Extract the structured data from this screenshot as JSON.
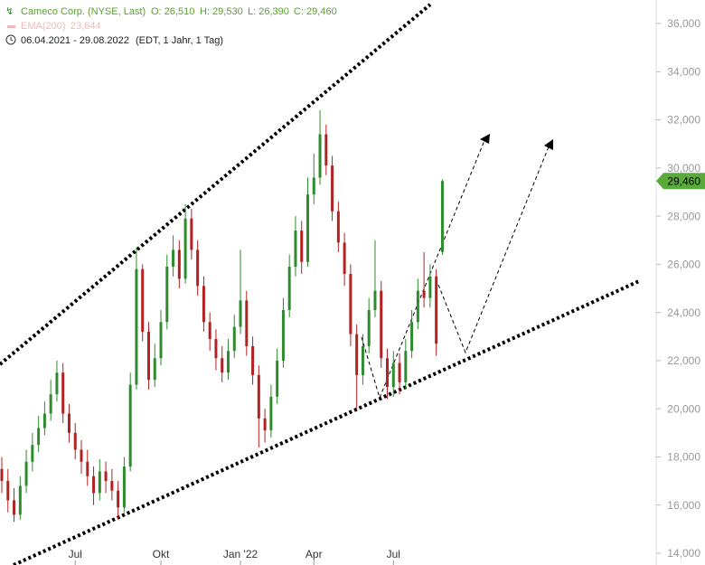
{
  "chart_data": {
    "type": "candlestick",
    "title": "Cameco Corp. (NYSE, Last)",
    "ohlc_labels": [
      "O: 26,510",
      "H: 29,530",
      "L: 26,390",
      "C: 29,460"
    ],
    "indicator": "EMA(200)",
    "indicator_value": "23,644",
    "date_range": "06.04.2021 - 29.08.2022",
    "period_info": "(EDT, 1 Jahr, 1 Tag)",
    "categories": [
      null,
      null,
      null,
      null,
      null,
      null,
      null,
      null,
      null,
      null,
      null,
      null,
      "Jul",
      null,
      null,
      null,
      null,
      null,
      null,
      null,
      null,
      null,
      null,
      null,
      null,
      null,
      "Okt",
      null,
      null,
      null,
      null,
      null,
      null,
      null,
      null,
      null,
      null,
      null,
      null,
      "Jan '22",
      null,
      null,
      null,
      null,
      null,
      null,
      null,
      null,
      null,
      null,
      null,
      "Apr",
      null,
      null,
      null,
      null,
      null,
      null,
      null,
      null,
      null,
      null,
      null,
      null,
      "Jul",
      null,
      null,
      null,
      null,
      null,
      null,
      null,
      null
    ],
    "open": [
      17500,
      17000,
      16200,
      15600,
      16800,
      17800,
      18500,
      19200,
      19800,
      20600,
      21500,
      19800,
      19000,
      18300,
      17800,
      17200,
      16500,
      17400,
      17000,
      16600,
      15900,
      17600,
      21000,
      25800,
      23200,
      21200,
      22100,
      23600,
      25900,
      26600,
      25400,
      27900,
      26600,
      25100,
      23600,
      22900,
      22100,
      21500,
      22400,
      23400,
      24500,
      22600,
      21400,
      19600,
      19100,
      20500,
      22000,
      24100,
      25900,
      27400,
      26100,
      28900,
      29600,
      31400,
      30100,
      28200,
      26900,
      25600,
      23100,
      21400,
      22600,
      24100,
      24900,
      22100,
      20900,
      21900,
      21100,
      22400,
      23600,
      24900,
      24600,
      25500,
      26510
    ],
    "high": [
      18000,
      17500,
      16700,
      17200,
      18300,
      19000,
      19700,
      20300,
      21200,
      22000,
      21900,
      20200,
      19400,
      18700,
      18300,
      17600,
      17900,
      17800,
      17500,
      17000,
      18000,
      21500,
      26700,
      26000,
      23600,
      22700,
      24100,
      26400,
      27200,
      27000,
      28500,
      28300,
      27000,
      25500,
      24000,
      23300,
      22600,
      22900,
      23900,
      26600,
      24900,
      23000,
      21800,
      20000,
      21000,
      22500,
      24600,
      26400,
      28000,
      27800,
      29600,
      30600,
      32400,
      31800,
      30500,
      28600,
      27300,
      26000,
      23500,
      23100,
      24600,
      27000,
      25300,
      22500,
      22400,
      22300,
      22900,
      24100,
      25400,
      26500,
      26000,
      25800,
      29530
    ],
    "low": [
      16500,
      15700,
      15300,
      15400,
      16500,
      17400,
      18200,
      18900,
      19500,
      20300,
      19400,
      18600,
      17900,
      17300,
      16800,
      16000,
      16200,
      16500,
      16200,
      15400,
      15700,
      17400,
      20800,
      22800,
      20800,
      20900,
      21800,
      23300,
      25500,
      25000,
      25200,
      26200,
      24700,
      23200,
      22400,
      21600,
      21100,
      21200,
      22100,
      23100,
      22200,
      21000,
      18400,
      18600,
      18800,
      20200,
      21700,
      23800,
      25500,
      25600,
      25900,
      28500,
      29300,
      29700,
      27800,
      26500,
      25100,
      22600,
      20000,
      21000,
      22300,
      23800,
      21700,
      20400,
      20500,
      20600,
      20800,
      22100,
      23300,
      24200,
      24200,
      22200,
      26390
    ],
    "close": [
      17000,
      16200,
      15600,
      16800,
      17800,
      18500,
      19200,
      19800,
      20600,
      21500,
      19800,
      19000,
      18300,
      17800,
      17200,
      16500,
      17400,
      17000,
      16600,
      15900,
      17600,
      21000,
      25800,
      23200,
      21200,
      22100,
      23600,
      25900,
      26600,
      25400,
      27900,
      26600,
      25100,
      23600,
      22900,
      22100,
      21500,
      22400,
      23400,
      24500,
      22600,
      21400,
      19600,
      19100,
      20500,
      22000,
      24100,
      25900,
      27400,
      26100,
      28900,
      29600,
      31400,
      30100,
      28200,
      26900,
      25600,
      23100,
      21400,
      22600,
      24100,
      24900,
      22100,
      20900,
      21900,
      21100,
      22400,
      23600,
      24900,
      24600,
      25500,
      22700,
      29460
    ],
    "up_color": "#2e8b2e",
    "down_color": "#b22222",
    "last_price": {
      "value": 29460,
      "label": "29,460"
    },
    "ylim": [
      14000,
      36000
    ],
    "yticks": [
      {
        "value": 14000,
        "label": "14,000"
      },
      {
        "value": 16000,
        "label": "16,000"
      },
      {
        "value": 18000,
        "label": "18,000"
      },
      {
        "value": 20000,
        "label": "20,000"
      },
      {
        "value": 22000,
        "label": "22,000"
      },
      {
        "value": 24000,
        "label": "24,000"
      },
      {
        "value": 26000,
        "label": "26,000"
      },
      {
        "value": 28000,
        "label": "28,000"
      },
      {
        "value": 30000,
        "label": "30,000"
      },
      {
        "value": 32000,
        "label": "32,000"
      },
      {
        "value": 34000,
        "label": "34,000"
      },
      {
        "value": 36000,
        "label": "36,000"
      }
    ]
  }
}
